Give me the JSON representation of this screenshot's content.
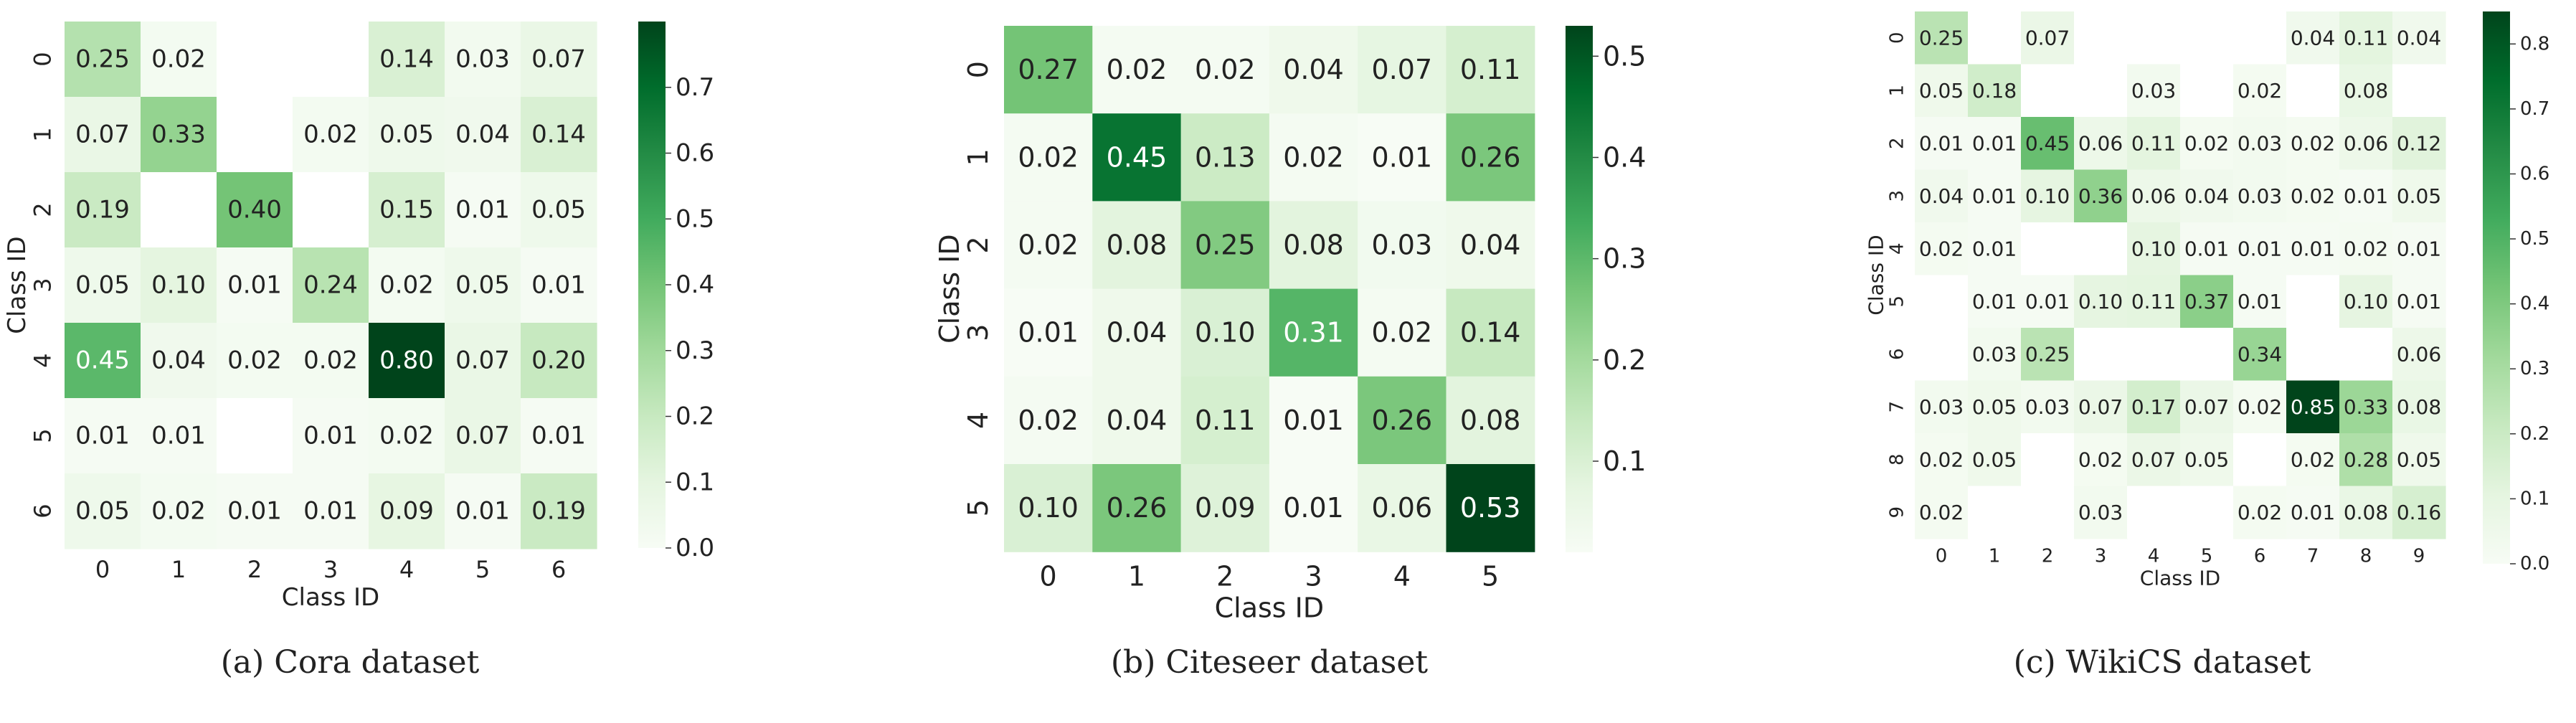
{
  "colormap": {
    "name": "Greens",
    "stops": [
      "#f7fcf5",
      "#e5f5e0",
      "#c7e9c0",
      "#a1d99b",
      "#74c476",
      "#41ab5d",
      "#238b45",
      "#006d2c",
      "#00441b"
    ]
  },
  "chart_data": [
    {
      "type": "heatmap",
      "caption": "(a)  Cora dataset",
      "xlabel": "Class ID",
      "ylabel": "Class ID",
      "categories": [
        "0",
        "1",
        "2",
        "3",
        "4",
        "5",
        "6"
      ],
      "vmin": 0.0,
      "vmax": 0.8,
      "colorbar_ticks": [
        "0.0",
        "0.1",
        "0.2",
        "0.3",
        "0.4",
        "0.5",
        "0.6",
        "0.7"
      ],
      "values": [
        [
          0.25,
          0.02,
          null,
          null,
          0.14,
          0.03,
          0.07
        ],
        [
          0.07,
          0.33,
          null,
          0.02,
          0.05,
          0.04,
          0.14
        ],
        [
          0.19,
          null,
          0.4,
          null,
          0.15,
          0.01,
          0.05
        ],
        [
          0.05,
          0.1,
          0.01,
          0.24,
          0.02,
          0.05,
          0.01
        ],
        [
          0.45,
          0.04,
          0.02,
          0.02,
          0.8,
          0.07,
          0.2
        ],
        [
          0.01,
          0.01,
          null,
          0.01,
          0.02,
          0.07,
          0.01
        ],
        [
          0.05,
          0.02,
          0.01,
          0.01,
          0.09,
          0.01,
          0.19
        ]
      ]
    },
    {
      "type": "heatmap",
      "caption": "(b)  Citeseer dataset",
      "xlabel": "Class ID",
      "ylabel": "Class ID",
      "categories": [
        "0",
        "1",
        "2",
        "3",
        "4",
        "5"
      ],
      "vmin": 0.01,
      "vmax": 0.53,
      "colorbar_ticks": [
        "0.1",
        "0.2",
        "0.3",
        "0.4",
        "0.5"
      ],
      "values": [
        [
          0.27,
          0.02,
          0.02,
          0.04,
          0.07,
          0.11
        ],
        [
          0.02,
          0.45,
          0.13,
          0.02,
          0.01,
          0.26
        ],
        [
          0.02,
          0.08,
          0.25,
          0.08,
          0.03,
          0.04
        ],
        [
          0.01,
          0.04,
          0.1,
          0.31,
          0.02,
          0.14
        ],
        [
          0.02,
          0.04,
          0.11,
          0.01,
          0.26,
          0.08
        ],
        [
          0.1,
          0.26,
          0.09,
          0.01,
          0.06,
          0.53
        ]
      ]
    },
    {
      "type": "heatmap",
      "caption": "(c)  WikiCS dataset",
      "xlabel": "Class ID",
      "ylabel": "Class ID",
      "categories": [
        "0",
        "1",
        "2",
        "3",
        "4",
        "5",
        "6",
        "7",
        "8",
        "9"
      ],
      "vmin": 0.0,
      "vmax": 0.85,
      "colorbar_ticks": [
        "0.0",
        "0.1",
        "0.2",
        "0.3",
        "0.4",
        "0.5",
        "0.6",
        "0.7",
        "0.8"
      ],
      "values": [
        [
          0.25,
          null,
          0.07,
          null,
          null,
          null,
          null,
          0.04,
          0.11,
          0.04
        ],
        [
          0.05,
          0.18,
          null,
          null,
          0.03,
          null,
          0.02,
          null,
          0.08,
          null
        ],
        [
          0.01,
          0.01,
          0.45,
          0.06,
          0.11,
          0.02,
          0.03,
          0.02,
          0.06,
          0.12
        ],
        [
          0.04,
          0.01,
          0.1,
          0.36,
          0.06,
          0.04,
          0.03,
          0.02,
          0.01,
          0.05
        ],
        [
          0.02,
          0.01,
          null,
          null,
          0.1,
          0.01,
          0.01,
          0.01,
          0.02,
          0.01
        ],
        [
          null,
          0.01,
          0.01,
          0.1,
          0.11,
          0.37,
          0.01,
          null,
          0.1,
          0.01
        ],
        [
          null,
          0.03,
          0.25,
          null,
          null,
          null,
          0.34,
          null,
          null,
          0.06
        ],
        [
          0.03,
          0.05,
          0.03,
          0.07,
          0.17,
          0.07,
          0.02,
          0.85,
          0.33,
          0.08
        ],
        [
          0.02,
          0.05,
          null,
          0.02,
          0.07,
          0.05,
          null,
          0.02,
          0.28,
          0.05
        ],
        [
          0.02,
          null,
          null,
          0.03,
          null,
          null,
          0.02,
          0.01,
          0.08,
          0.16
        ]
      ]
    }
  ]
}
